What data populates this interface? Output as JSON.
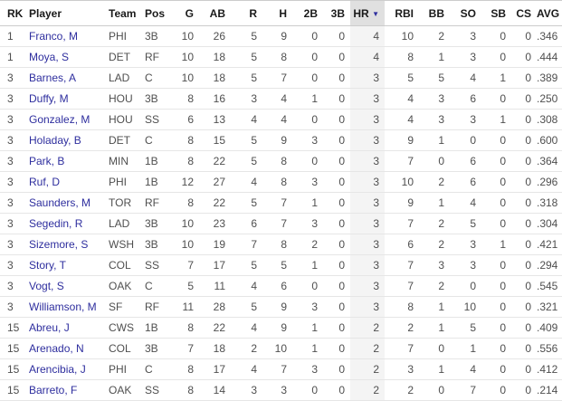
{
  "colors": {
    "link": "#2e2e9e",
    "cell_text": "#4f4f4f",
    "header_text": "#1a1a1a",
    "sorted_header_bg": "#e0e0e0",
    "sorted_cell_bg": "#f4f4f4",
    "row_border": "#e6e6e6",
    "header_border": "#cccccc"
  },
  "table": {
    "sorted_column": "hr",
    "sort_indicator": "▼",
    "columns": [
      {
        "key": "rk",
        "label": "RK",
        "numeric": false,
        "sortable": false
      },
      {
        "key": "player",
        "label": "Player",
        "numeric": false,
        "sortable": false
      },
      {
        "key": "team",
        "label": "Team",
        "numeric": false,
        "sortable": false
      },
      {
        "key": "pos",
        "label": "Pos",
        "numeric": false,
        "sortable": false
      },
      {
        "key": "g",
        "label": "G",
        "numeric": true,
        "sortable": true
      },
      {
        "key": "ab",
        "label": "AB",
        "numeric": true,
        "sortable": true
      },
      {
        "key": "r",
        "label": "R",
        "numeric": true,
        "sortable": true
      },
      {
        "key": "h",
        "label": "H",
        "numeric": true,
        "sortable": true
      },
      {
        "key": "2b",
        "label": "2B",
        "numeric": true,
        "sortable": true
      },
      {
        "key": "3b",
        "label": "3B",
        "numeric": true,
        "sortable": true
      },
      {
        "key": "hr",
        "label": "HR",
        "numeric": true,
        "sortable": true
      },
      {
        "key": "rbi",
        "label": "RBI",
        "numeric": true,
        "sortable": true
      },
      {
        "key": "bb",
        "label": "BB",
        "numeric": true,
        "sortable": true
      },
      {
        "key": "so",
        "label": "SO",
        "numeric": true,
        "sortable": true
      },
      {
        "key": "sb",
        "label": "SB",
        "numeric": true,
        "sortable": true
      },
      {
        "key": "cs",
        "label": "CS",
        "numeric": true,
        "sortable": true
      },
      {
        "key": "avg",
        "label": "AVG",
        "numeric": true,
        "sortable": true
      }
    ],
    "rows": [
      [
        "1",
        "Franco, M",
        "PHI",
        "3B",
        "10",
        "26",
        "5",
        "9",
        "0",
        "0",
        "4",
        "10",
        "2",
        "3",
        "0",
        "0",
        ".346"
      ],
      [
        "1",
        "Moya, S",
        "DET",
        "RF",
        "10",
        "18",
        "5",
        "8",
        "0",
        "0",
        "4",
        "8",
        "1",
        "3",
        "0",
        "0",
        ".444"
      ],
      [
        "3",
        "Barnes, A",
        "LAD",
        "C",
        "10",
        "18",
        "5",
        "7",
        "0",
        "0",
        "3",
        "5",
        "5",
        "4",
        "1",
        "0",
        ".389"
      ],
      [
        "3",
        "Duffy, M",
        "HOU",
        "3B",
        "8",
        "16",
        "3",
        "4",
        "1",
        "0",
        "3",
        "4",
        "3",
        "6",
        "0",
        "0",
        ".250"
      ],
      [
        "3",
        "Gonzalez, M",
        "HOU",
        "SS",
        "6",
        "13",
        "4",
        "4",
        "0",
        "0",
        "3",
        "4",
        "3",
        "3",
        "1",
        "0",
        ".308"
      ],
      [
        "3",
        "Holaday, B",
        "DET",
        "C",
        "8",
        "15",
        "5",
        "9",
        "3",
        "0",
        "3",
        "9",
        "1",
        "0",
        "0",
        "0",
        ".600"
      ],
      [
        "3",
        "Park, B",
        "MIN",
        "1B",
        "8",
        "22",
        "5",
        "8",
        "0",
        "0",
        "3",
        "7",
        "0",
        "6",
        "0",
        "0",
        ".364"
      ],
      [
        "3",
        "Ruf, D",
        "PHI",
        "1B",
        "12",
        "27",
        "4",
        "8",
        "3",
        "0",
        "3",
        "10",
        "2",
        "6",
        "0",
        "0",
        ".296"
      ],
      [
        "3",
        "Saunders, M",
        "TOR",
        "RF",
        "8",
        "22",
        "5",
        "7",
        "1",
        "0",
        "3",
        "9",
        "1",
        "4",
        "0",
        "0",
        ".318"
      ],
      [
        "3",
        "Segedin, R",
        "LAD",
        "3B",
        "10",
        "23",
        "6",
        "7",
        "3",
        "0",
        "3",
        "7",
        "2",
        "5",
        "0",
        "0",
        ".304"
      ],
      [
        "3",
        "Sizemore, S",
        "WSH",
        "3B",
        "10",
        "19",
        "7",
        "8",
        "2",
        "0",
        "3",
        "6",
        "2",
        "3",
        "1",
        "0",
        ".421"
      ],
      [
        "3",
        "Story, T",
        "COL",
        "SS",
        "7",
        "17",
        "5",
        "5",
        "1",
        "0",
        "3",
        "7",
        "3",
        "3",
        "0",
        "0",
        ".294"
      ],
      [
        "3",
        "Vogt, S",
        "OAK",
        "C",
        "5",
        "11",
        "4",
        "6",
        "0",
        "0",
        "3",
        "7",
        "2",
        "0",
        "0",
        "0",
        ".545"
      ],
      [
        "3",
        "Williamson, M",
        "SF",
        "RF",
        "11",
        "28",
        "5",
        "9",
        "3",
        "0",
        "3",
        "8",
        "1",
        "10",
        "0",
        "0",
        ".321"
      ],
      [
        "15",
        "Abreu, J",
        "CWS",
        "1B",
        "8",
        "22",
        "4",
        "9",
        "1",
        "0",
        "2",
        "2",
        "1",
        "5",
        "0",
        "0",
        ".409"
      ],
      [
        "15",
        "Arenado, N",
        "COL",
        "3B",
        "7",
        "18",
        "2",
        "10",
        "1",
        "0",
        "2",
        "7",
        "0",
        "1",
        "0",
        "0",
        ".556"
      ],
      [
        "15",
        "Arencibia, J",
        "PHI",
        "C",
        "8",
        "17",
        "4",
        "7",
        "3",
        "0",
        "2",
        "3",
        "1",
        "4",
        "0",
        "0",
        ".412"
      ],
      [
        "15",
        "Barreto, F",
        "OAK",
        "SS",
        "8",
        "14",
        "3",
        "3",
        "0",
        "0",
        "2",
        "2",
        "0",
        "7",
        "0",
        "0",
        ".214"
      ]
    ]
  }
}
